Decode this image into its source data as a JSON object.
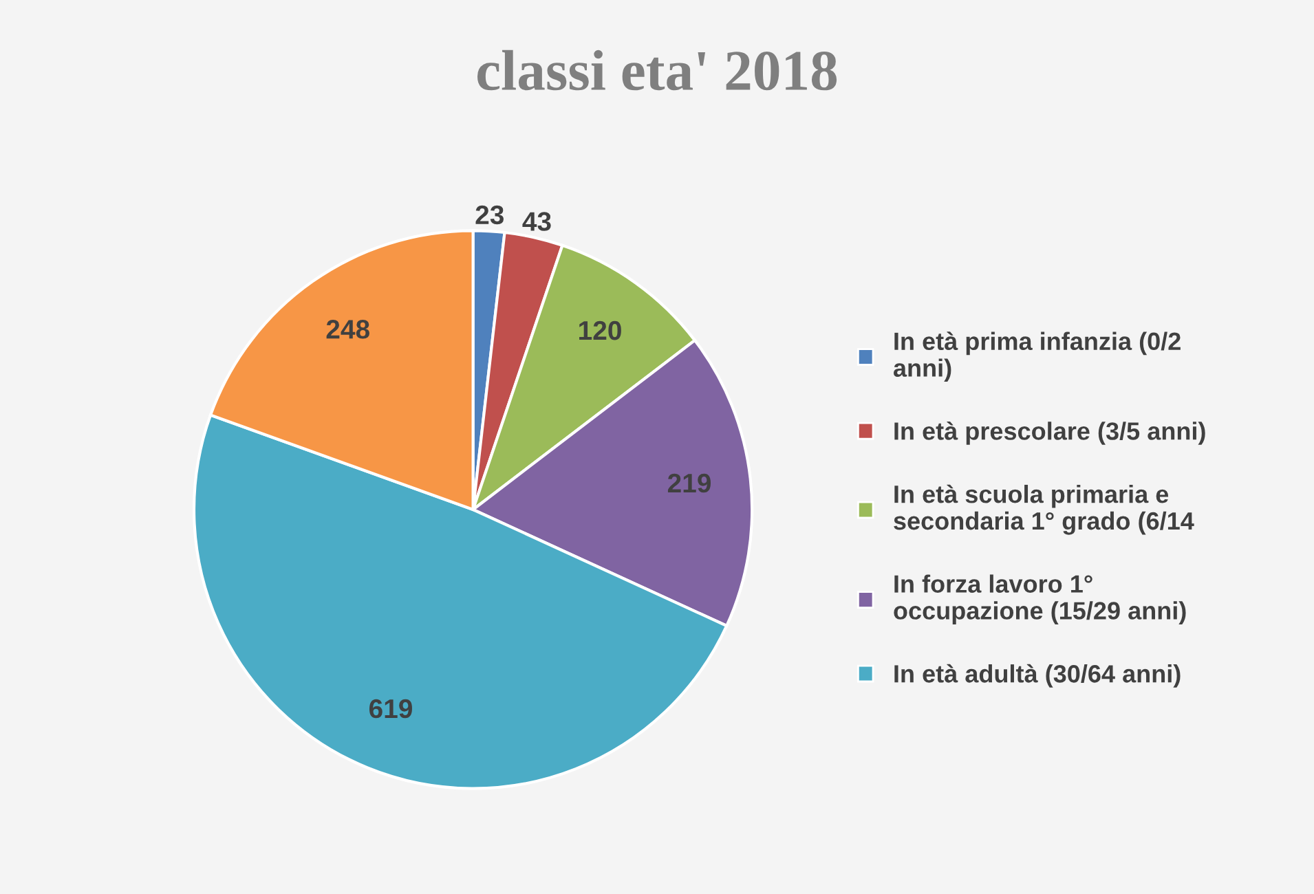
{
  "chart_data": {
    "type": "pie",
    "title": "classi eta' 2018",
    "categories": [
      "In età prima infanzia (0/2 anni)",
      "In età prescolare (3/5 anni)",
      "In età scuola primaria e secondaria 1° grado (6/14",
      "In forza lavoro 1° occupazione (15/29 anni)",
      "In età adultà (30/64 anni)",
      null
    ],
    "values": [
      23,
      43,
      120,
      219,
      619,
      248
    ],
    "colors": [
      "#4f81bd",
      "#c0504d",
      "#9bbb59",
      "#8064a2",
      "#4bacc6",
      "#f79646"
    ],
    "data_labels": true,
    "legend": "right"
  }
}
